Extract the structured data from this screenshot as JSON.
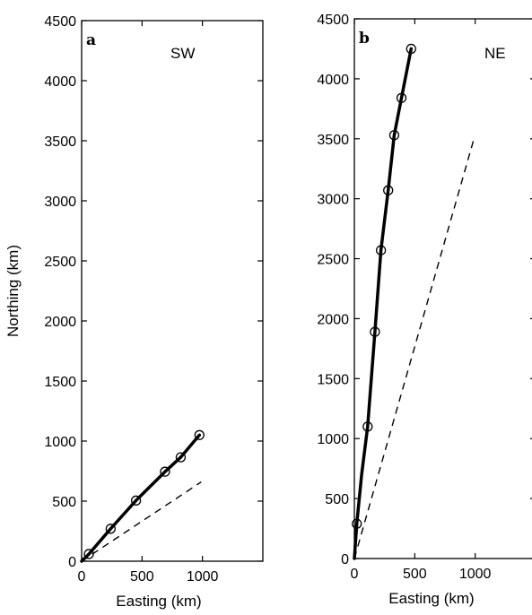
{
  "chart_data": [
    {
      "type": "line",
      "panel_label": "a",
      "region_label": "SW",
      "xlabel": "Easting (km)",
      "ylabel": "Northing (km)",
      "xlim": [
        0,
        1500
      ],
      "ylim": [
        0,
        4500
      ],
      "xticks": [
        0,
        500,
        1000
      ],
      "yticks": [
        0,
        500,
        1000,
        1500,
        2000,
        2500,
        3000,
        3500,
        4000,
        4500
      ],
      "grid": false,
      "series": [
        {
          "style": "solid-with-circle-markers",
          "x": [
            0,
            60,
            240,
            450,
            690,
            820,
            975
          ],
          "y": [
            0,
            60,
            270,
            505,
            745,
            865,
            1050
          ]
        },
        {
          "style": "dashed",
          "x": [
            0,
            990
          ],
          "y": [
            0,
            660
          ]
        }
      ],
      "markers": {
        "x": [
          60,
          240,
          450,
          690,
          820,
          975
        ],
        "y": [
          60,
          270,
          505,
          745,
          865,
          1050
        ]
      }
    },
    {
      "type": "line",
      "panel_label": "b",
      "region_label": "NE",
      "xlabel": "Easting (km)",
      "ylabel": "",
      "xlim": [
        0,
        1500
      ],
      "ylim": [
        0,
        4500
      ],
      "xticks": [
        0,
        500,
        1000
      ],
      "yticks": [
        0,
        500,
        1000,
        1500,
        2000,
        2500,
        3000,
        3500,
        4000,
        4500
      ],
      "grid": false,
      "series": [
        {
          "style": "solid-with-circle-markers",
          "x": [
            0,
            20,
            60,
            110,
            170,
            220,
            280,
            330,
            390,
            470
          ],
          "y": [
            0,
            290,
            700,
            1100,
            1890,
            2570,
            3070,
            3530,
            3840,
            4250
          ]
        },
        {
          "style": "dashed",
          "x": [
            0,
            990
          ],
          "y": [
            0,
            3500
          ]
        }
      ],
      "markers": {
        "x": [
          20,
          110,
          170,
          220,
          280,
          330,
          390,
          470
        ],
        "y": [
          290,
          1100,
          1890,
          2570,
          3070,
          3530,
          3840,
          4250
        ]
      }
    }
  ]
}
